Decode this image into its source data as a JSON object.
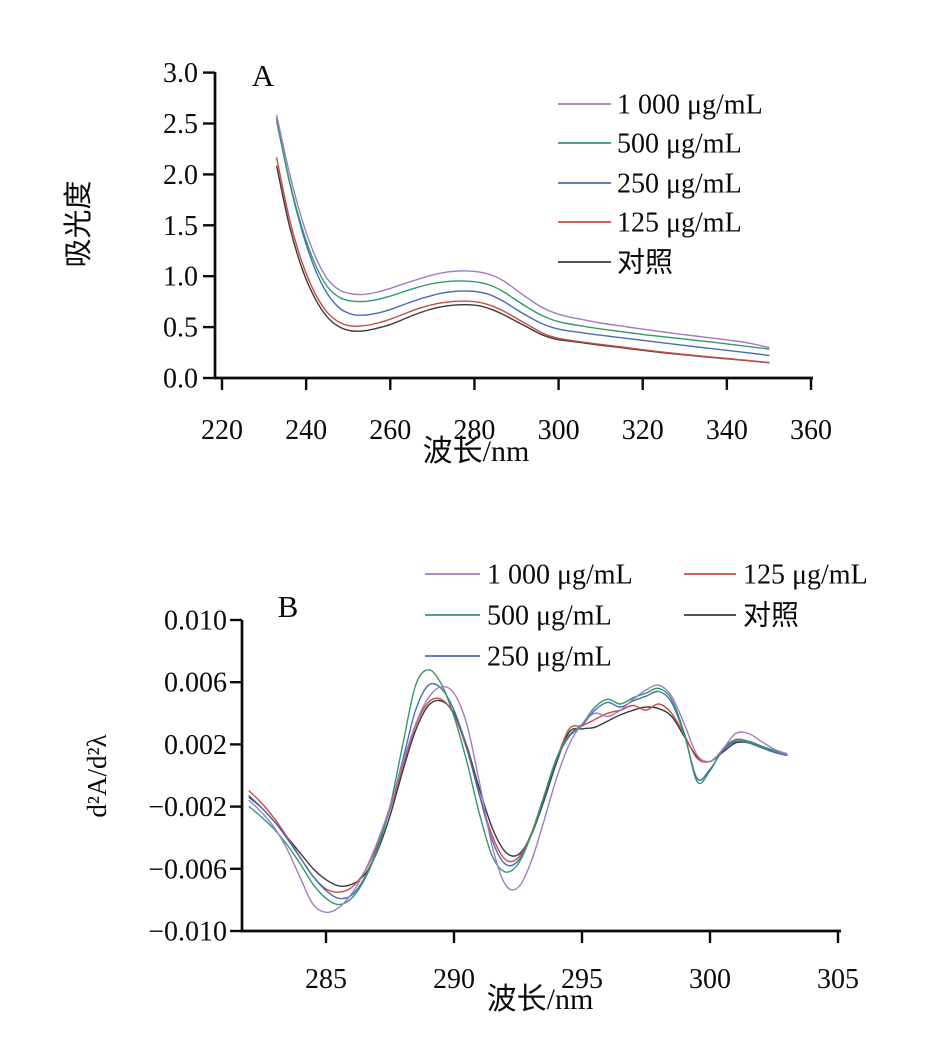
{
  "figure": {
    "background": "#ffffff",
    "text_color": "#0a0a0a",
    "axis_color": "#0a0a0a"
  },
  "chart_data": [
    {
      "id": "A",
      "type": "line",
      "panel_label": "A",
      "xlabel": "波长/nm",
      "ylabel": "吸光度",
      "xlim": [
        220,
        360
      ],
      "ylim": [
        0.0,
        3.0
      ],
      "grid": false,
      "legend_position": "upper right inside, single column",
      "legend_columns": [
        [
          0,
          1,
          2,
          3,
          4
        ]
      ],
      "xticks": {
        "values": [
          220,
          240,
          260,
          280,
          300,
          320,
          340,
          360
        ],
        "labels": [
          "220",
          "240",
          "260",
          "280",
          "300",
          "320",
          "340",
          "360"
        ]
      },
      "yticks": {
        "values": [
          3.0,
          2.5,
          2.0,
          1.5,
          1.0,
          0.5,
          0.0
        ],
        "labels": [
          "3.0",
          "2.5",
          "2.0",
          "1.5",
          "1.0",
          "0.5",
          "0.0"
        ]
      },
      "values_scale": 1,
      "x": [
        233,
        236,
        239,
        242,
        245,
        248,
        251,
        254,
        257,
        260,
        263,
        266,
        269,
        272,
        275,
        278,
        281,
        284,
        287,
        290,
        293,
        296,
        299,
        302,
        306,
        310,
        315,
        320,
        325,
        330,
        335,
        340,
        345,
        350
      ],
      "series": [
        {
          "name": "1 000 μg/mL",
          "color": "#a17bc6",
          "values": [
            2.58,
            2.02,
            1.56,
            1.21,
            0.975,
            0.862,
            0.825,
            0.822,
            0.845,
            0.88,
            0.922,
            0.962,
            1.0,
            1.03,
            1.048,
            1.052,
            1.042,
            1.012,
            0.952,
            0.862,
            0.775,
            0.695,
            0.64,
            0.605,
            0.572,
            0.54,
            0.51,
            0.48,
            0.452,
            0.425,
            0.4,
            0.375,
            0.345,
            0.3
          ]
        },
        {
          "name": "500 μg/mL",
          "color": "#2e9b68",
          "values": [
            2.52,
            1.94,
            1.48,
            1.13,
            0.9,
            0.79,
            0.755,
            0.752,
            0.772,
            0.805,
            0.845,
            0.885,
            0.918,
            0.94,
            0.952,
            0.952,
            0.94,
            0.908,
            0.845,
            0.762,
            0.685,
            0.615,
            0.565,
            0.535,
            0.508,
            0.482,
            0.455,
            0.428,
            0.405,
            0.382,
            0.36,
            0.335,
            0.31,
            0.285
          ]
        },
        {
          "name": "250 μg/mL",
          "color": "#4a6cb3",
          "values": [
            2.55,
            1.93,
            1.45,
            1.08,
            0.83,
            0.685,
            0.625,
            0.618,
            0.638,
            0.672,
            0.718,
            0.762,
            0.8,
            0.832,
            0.85,
            0.855,
            0.845,
            0.812,
            0.75,
            0.672,
            0.6,
            0.535,
            0.49,
            0.465,
            0.443,
            0.42,
            0.395,
            0.37,
            0.345,
            0.32,
            0.295,
            0.272,
            0.248,
            0.222
          ]
        },
        {
          "name": "125 μg/mL",
          "color": "#cd4a42",
          "values": [
            2.16,
            1.57,
            1.14,
            0.84,
            0.645,
            0.545,
            0.51,
            0.515,
            0.54,
            0.578,
            0.625,
            0.672,
            0.71,
            0.738,
            0.752,
            0.755,
            0.745,
            0.71,
            0.655,
            0.585,
            0.515,
            0.445,
            0.4,
            0.375,
            0.352,
            0.33,
            0.305,
            0.278,
            0.253,
            0.231,
            0.211,
            0.192,
            0.173,
            0.152
          ]
        },
        {
          "name": "对照",
          "color": "#3a3a3a",
          "values": [
            2.08,
            1.5,
            1.08,
            0.79,
            0.6,
            0.5,
            0.462,
            0.465,
            0.49,
            0.525,
            0.575,
            0.625,
            0.668,
            0.698,
            0.715,
            0.72,
            0.71,
            0.675,
            0.62,
            0.555,
            0.49,
            0.425,
            0.385,
            0.365,
            0.345,
            0.322,
            0.298,
            0.272,
            0.248,
            0.227,
            0.207,
            0.189,
            0.17,
            0.15
          ]
        }
      ]
    },
    {
      "id": "B",
      "type": "line",
      "panel_label": "B",
      "xlabel": "波长/nm",
      "ylabel": "d²A/d²λ",
      "xlim": [
        285,
        305
      ],
      "ylim": [
        -0.01,
        0.01
      ],
      "grid": false,
      "legend_position": "top inside, two columns",
      "legend_columns": [
        [
          0,
          1,
          2
        ],
        [
          3,
          4
        ]
      ],
      "xticks": {
        "values": [
          285,
          290,
          295,
          300,
          305
        ],
        "labels": [
          "285",
          "290",
          "295",
          "300",
          "305"
        ]
      },
      "yticks": {
        "values": [
          0.01,
          0.006,
          0.002,
          -0.002,
          -0.006,
          -0.01
        ],
        "labels": [
          "0.010",
          "0.006",
          "0.002",
          "−0.002",
          "−0.006",
          "−0.010"
        ]
      },
      "values_scale": 0.001,
      "x": [
        282,
        282.5,
        283,
        283.5,
        284,
        284.5,
        285,
        285.5,
        286,
        286.5,
        287,
        287.5,
        288,
        288.5,
        289,
        289.5,
        290,
        290.5,
        291,
        291.5,
        292,
        292.5,
        293,
        293.5,
        294,
        294.5,
        295,
        295.5,
        296,
        296.5,
        297,
        297.5,
        298,
        298.5,
        299,
        299.5,
        300,
        300.5,
        301,
        301.5,
        302,
        302.5,
        303
      ],
      "series": [
        {
          "name": "1 000 μg/mL",
          "color": "#a17bc6",
          "values": [
            -1.6,
            -2.4,
            -3.4,
            -4.8,
            -6.6,
            -8.3,
            -8.8,
            -8.5,
            -7.6,
            -6.2,
            -4.3,
            -2.0,
            0.8,
            3.3,
            5.0,
            5.7,
            5.3,
            3.3,
            -0.5,
            -4.6,
            -7.0,
            -7.2,
            -5.6,
            -3.0,
            -0.2,
            2.0,
            3.3,
            4.0,
            3.8,
            4.2,
            4.9,
            5.5,
            5.8,
            5.1,
            3.3,
            1.3,
            0.9,
            1.7,
            2.7,
            2.7,
            2.2,
            1.7,
            1.4
          ]
        },
        {
          "name": "500 μg/mL",
          "color": "#2e9b68",
          "values": [
            -2.0,
            -2.7,
            -3.5,
            -4.5,
            -5.7,
            -7.0,
            -7.9,
            -8.3,
            -7.9,
            -6.7,
            -4.8,
            -2.0,
            2.0,
            5.8,
            6.8,
            5.9,
            3.8,
            0.9,
            -2.5,
            -5.2,
            -6.2,
            -5.7,
            -3.9,
            -1.4,
            1.1,
            2.6,
            3.3,
            4.4,
            4.9,
            4.6,
            5.0,
            5.3,
            5.6,
            4.9,
            2.7,
            -0.4,
            0.3,
            1.7,
            2.3,
            2.2,
            1.9,
            1.6,
            1.4
          ]
        },
        {
          "name": "250 μg/mL",
          "color": "#4a6cb3",
          "values": [
            -1.3,
            -2.1,
            -3.0,
            -4.1,
            -5.3,
            -6.5,
            -7.4,
            -7.9,
            -7.7,
            -6.6,
            -4.7,
            -2.1,
            1.0,
            4.2,
            5.8,
            5.6,
            4.2,
            1.8,
            -1.3,
            -4.2,
            -5.7,
            -5.5,
            -3.9,
            -1.5,
            1.0,
            2.5,
            3.2,
            4.2,
            4.7,
            4.4,
            4.8,
            5.1,
            5.4,
            4.7,
            2.6,
            -0.2,
            0.4,
            1.6,
            2.2,
            2.1,
            1.8,
            1.5,
            1.3
          ]
        },
        {
          "name": "125 μg/mL",
          "color": "#cd4a42",
          "values": [
            -1.0,
            -1.8,
            -2.8,
            -4.0,
            -5.3,
            -6.5,
            -7.3,
            -7.5,
            -7.2,
            -6.2,
            -4.5,
            -2.2,
            0.6,
            3.2,
            4.7,
            4.9,
            3.9,
            1.7,
            -1.3,
            -3.9,
            -5.4,
            -5.3,
            -3.8,
            -1.4,
            1.0,
            3.0,
            3.2,
            3.6,
            4.0,
            4.2,
            4.5,
            4.2,
            4.6,
            4.0,
            2.6,
            1.1,
            0.9,
            1.6,
            2.3,
            2.2,
            1.9,
            1.5,
            1.3
          ]
        },
        {
          "name": "对照",
          "color": "#3a3a3a",
          "values": [
            -1.4,
            -2.1,
            -3.0,
            -4.0,
            -5.0,
            -6.0,
            -6.7,
            -7.1,
            -7.0,
            -6.4,
            -4.9,
            -2.6,
            0.3,
            2.9,
            4.5,
            4.8,
            4.0,
            1.9,
            -0.9,
            -3.4,
            -4.9,
            -5.1,
            -3.9,
            -1.7,
            0.8,
            2.8,
            3.0,
            3.1,
            3.5,
            3.9,
            4.2,
            4.4,
            4.3,
            3.8,
            2.5,
            1.2,
            0.9,
            1.5,
            2.1,
            2.1,
            1.8,
            1.5,
            1.3
          ]
        }
      ]
    }
  ]
}
